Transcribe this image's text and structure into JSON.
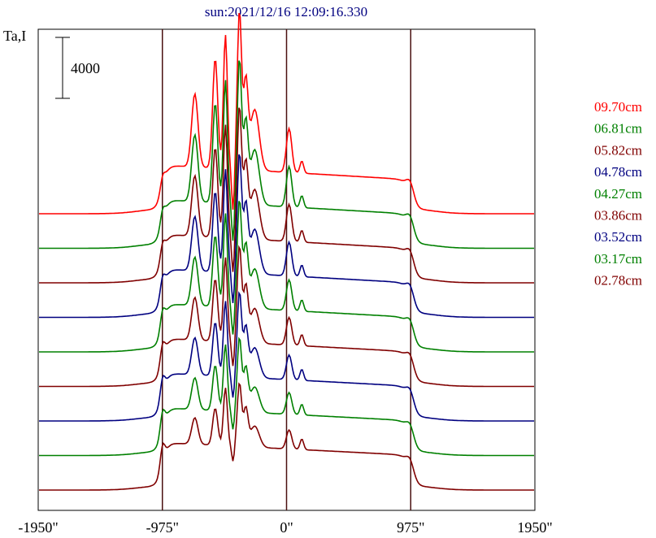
{
  "chart_data": {
    "type": "line",
    "title": "sun:2021/12/16 12:09:16.330",
    "ylabel": "Ta,I",
    "scale_bar_label": "4000",
    "scale_bar_value": 4000,
    "x_ticks": [
      {
        "value": -1950,
        "label": "-1950\""
      },
      {
        "value": -975,
        "label": "-975\""
      },
      {
        "value": 0,
        "label": "0\""
      },
      {
        "value": 975,
        "label": "975\""
      },
      {
        "value": 1950,
        "label": "1950\""
      }
    ],
    "xlim": [
      -1950,
      1950
    ],
    "vertical_lines": [
      -975,
      0,
      975
    ],
    "colors": {
      "red": "#ff0000",
      "green": "#008000",
      "darkred": "#800000",
      "blue": "#000080",
      "frame": "#000000",
      "title": "#000080"
    },
    "series": [
      {
        "name": "09.70cm",
        "color": "#ff0000"
      },
      {
        "name": "06.81cm",
        "color": "#008000"
      },
      {
        "name": "05.82cm",
        "color": "#800000"
      },
      {
        "name": "04.78cm",
        "color": "#000080"
      },
      {
        "name": "04.27cm",
        "color": "#008000"
      },
      {
        "name": "03.86cm",
        "color": "#800000"
      },
      {
        "name": "03.52cm",
        "color": "#000080"
      },
      {
        "name": "03.17cm",
        "color": "#008000"
      },
      {
        "name": "02.78cm",
        "color": "#800000"
      }
    ]
  }
}
